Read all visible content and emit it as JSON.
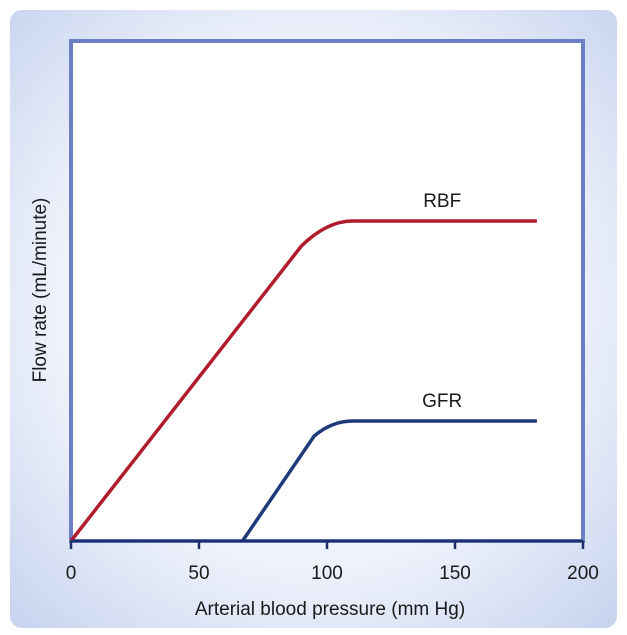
{
  "chart_data": {
    "type": "line",
    "xlabel": "Arterial blood pressure (mm Hg)",
    "ylabel": "Flow rate (mL/minute)",
    "xlim": [
      0,
      200
    ],
    "x_ticks": [
      0,
      50,
      100,
      150,
      200
    ],
    "y_ticks_shown": false,
    "grid": false,
    "series": [
      {
        "name": "RBF",
        "color": "#b01c2e",
        "x": [
          0,
          90,
          100,
          110,
          182
        ],
        "y": [
          0,
          0.59,
          0.63,
          0.64,
          0.64
        ]
      },
      {
        "name": "GFR",
        "color": "#1f3a7a",
        "x": [
          67,
          95,
          102,
          110,
          182
        ],
        "y": [
          0,
          0.21,
          0.235,
          0.24,
          0.24
        ]
      }
    ]
  },
  "colors": {
    "panel_background": "#d6dff2",
    "frame": "#6a7fc4",
    "axis": "#1f2f6e"
  }
}
